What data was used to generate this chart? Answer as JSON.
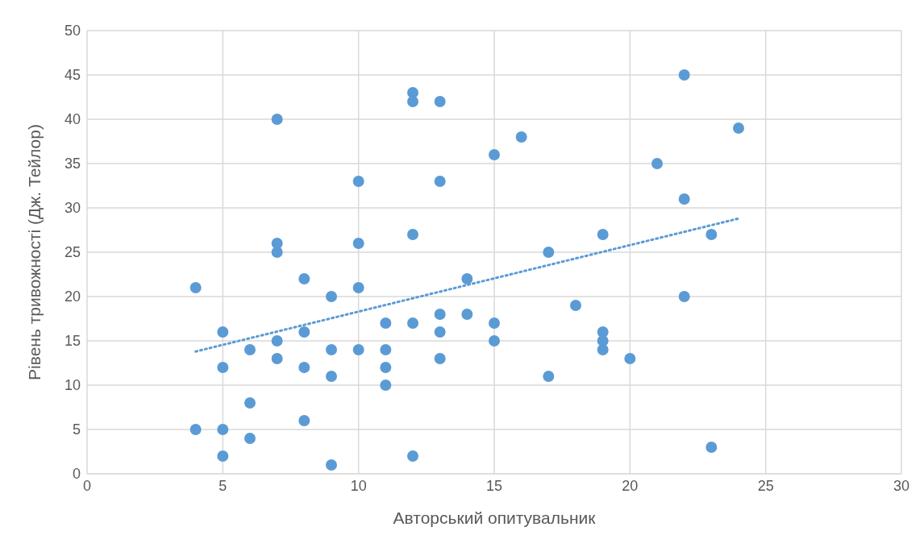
{
  "chart_data": {
    "type": "scatter",
    "xlabel": "Авторський опитувальник",
    "ylabel": "Рівень тривожності (Дж. Тейлор)",
    "xlim": [
      0,
      30
    ],
    "xticks": [
      0,
      5,
      10,
      15,
      20,
      25,
      30
    ],
    "ylim": [
      0,
      50
    ],
    "yticks": [
      0,
      5,
      10,
      15,
      20,
      25,
      30,
      35,
      40,
      45,
      50
    ],
    "grid": true,
    "legend": false,
    "series": [
      {
        "type": "scatter",
        "color": "#5b9bd5",
        "marker": "circle",
        "x": [
          4,
          4,
          5,
          5,
          5,
          5,
          6,
          6,
          6,
          7,
          7,
          7,
          7,
          7,
          8,
          8,
          8,
          8,
          9,
          9,
          9,
          9,
          10,
          10,
          10,
          10,
          11,
          11,
          11,
          11,
          12,
          12,
          12,
          12,
          12,
          13,
          13,
          13,
          13,
          13,
          14,
          14,
          15,
          15,
          15,
          16,
          17,
          17,
          18,
          19,
          19,
          19,
          19,
          20,
          21,
          22,
          22,
          22,
          23,
          23,
          24
        ],
        "values": [
          21,
          5,
          16,
          12,
          5,
          2,
          14,
          8,
          4,
          40,
          26,
          25,
          15,
          13,
          22,
          16,
          12,
          6,
          20,
          14,
          11,
          1,
          33,
          26,
          21,
          14,
          17,
          14,
          12,
          10,
          43,
          42,
          27,
          17,
          2,
          42,
          33,
          18,
          16,
          13,
          22,
          18,
          36,
          17,
          15,
          38,
          25,
          11,
          19,
          27,
          16,
          15,
          14,
          13,
          35,
          45,
          31,
          20,
          27,
          3,
          39
        ]
      },
      {
        "type": "line",
        "color": "#5b9bd5",
        "marker": "none",
        "line_style": "dotted",
        "x": [
          4,
          24
        ],
        "values": [
          13.8,
          28.8
        ]
      }
    ]
  }
}
